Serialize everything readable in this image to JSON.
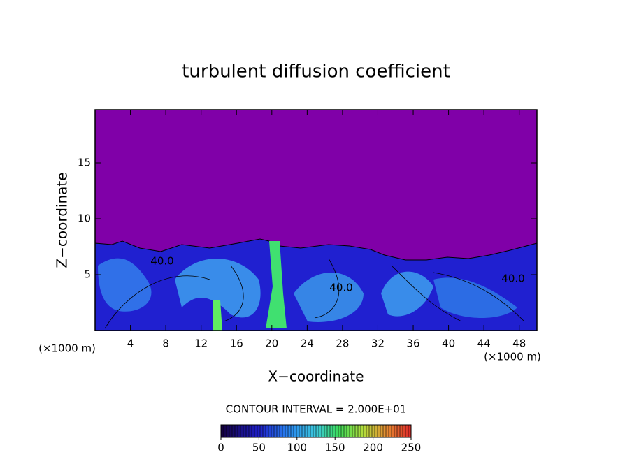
{
  "chart_data": {
    "type": "contour",
    "title": "turbulent diffusion coefficient",
    "xlabel": "X−coordinate",
    "ylabel": "Z−coordinate",
    "x_unit_left": "(×1000 m)",
    "x_unit_right": "(×1000 m)",
    "xlim": [
      0,
      50
    ],
    "xticks": [
      4,
      8,
      12,
      16,
      20,
      24,
      28,
      32,
      36,
      40,
      44,
      48
    ],
    "ylim": [
      0,
      19.75
    ],
    "yticks": [
      5,
      10,
      15
    ],
    "contour_labels": [
      "40.0",
      "40.0",
      "40.0"
    ],
    "contour_interval": "CONTOUR INTERVAL = 2.000E+01",
    "colorbar": {
      "lim": [
        0,
        250
      ],
      "ticks": [
        0,
        50,
        100,
        150,
        200,
        250
      ]
    }
  }
}
